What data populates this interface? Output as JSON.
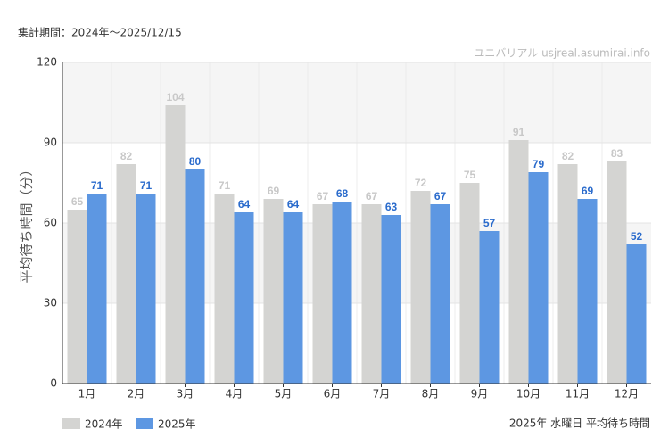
{
  "chart_data": {
    "type": "bar",
    "title": "集計期間：2024年～2025/12/15",
    "source": "ユニバリアル  usjreal.asumirai.info",
    "note": "2025年 水曜日 平均待ち時間",
    "ylabel": "平均待ち時間（分）",
    "categories": [
      "1月",
      "2月",
      "3月",
      "4月",
      "5月",
      "6月",
      "7月",
      "8月",
      "9月",
      "10月",
      "11月",
      "12月"
    ],
    "series": [
      {
        "name": "2024年",
        "color": "#d4d4d2",
        "label_color": "#c8c8c8",
        "values": [
          65,
          82,
          104,
          71,
          69,
          67,
          67,
          72,
          75,
          91,
          82,
          83
        ]
      },
      {
        "name": "2025年",
        "color": "#5d97e2",
        "label_color": "#2a6bcc",
        "values": [
          71,
          71,
          80,
          64,
          64,
          68,
          63,
          67,
          57,
          79,
          69,
          52
        ]
      }
    ],
    "ylim": [
      0,
      120
    ],
    "yticks": [
      0,
      30,
      60,
      90,
      120
    ],
    "grid": true,
    "legend": "bottom-left"
  }
}
